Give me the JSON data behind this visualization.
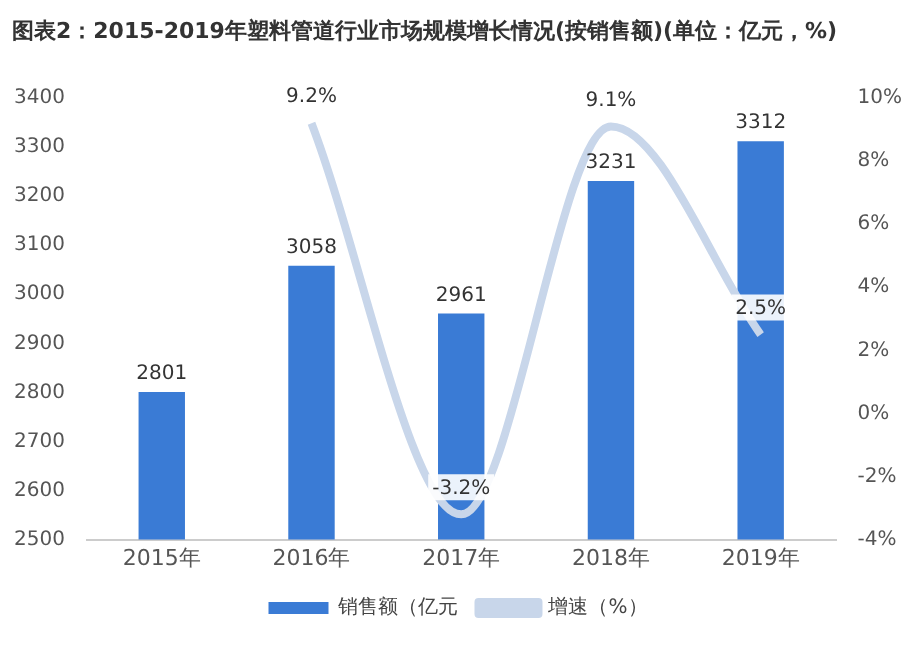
{
  "chart_data": {
    "type": "bar",
    "title": "图表2：2015-2019年塑料管道行业市场规模增长情况(按销售额)(单位：亿元，%)",
    "categories": [
      "2015年",
      "2016年",
      "2017年",
      "2018年",
      "2019年"
    ],
    "series": [
      {
        "name": "销售额（亿元",
        "color": "#3a7bd5",
        "values": [
          2801,
          3058,
          2961,
          3231,
          3312
        ],
        "value_labels": [
          "2801",
          "3058",
          "2961",
          "3231",
          "3312"
        ]
      },
      {
        "name": "增速（%）",
        "type": "line",
        "axis": "y2",
        "color": "#c8d6ea",
        "values": [
          null,
          9.2,
          -3.2,
          9.1,
          2.5
        ],
        "value_labels": [
          null,
          "9.2%",
          "-3.2%",
          "9.1%",
          "2.5%"
        ]
      }
    ],
    "ylim": [
      2500,
      3400
    ],
    "yticks": [
      2500,
      2600,
      2700,
      2800,
      2900,
      3000,
      3100,
      3200,
      3300,
      3400
    ],
    "y2lim": [
      -4,
      10
    ],
    "y2ticks": [
      {
        "value": -4,
        "label": "-4%"
      },
      {
        "value": -2,
        "label": "-2%"
      },
      {
        "value": 0,
        "label": "0%"
      },
      {
        "value": 2,
        "label": "2%"
      },
      {
        "value": 4,
        "label": "4%"
      },
      {
        "value": 6,
        "label": "6%"
      },
      {
        "value": 8,
        "label": "8%"
      },
      {
        "value": 10,
        "label": "10%"
      }
    ],
    "grid": false,
    "legend": "bottom",
    "marker": "none"
  }
}
